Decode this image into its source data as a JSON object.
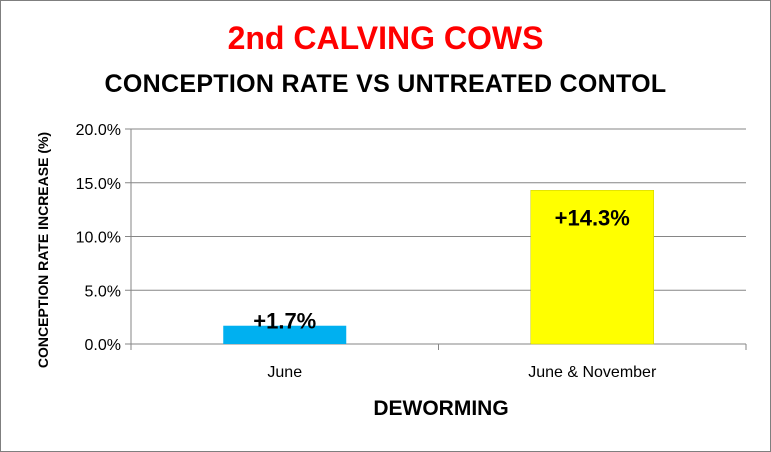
{
  "chart_data": {
    "type": "bar",
    "title": "2nd CALVING COWS",
    "subtitle": "CONCEPTION RATE VS UNTREATED CONTOL",
    "xlabel": "DEWORMING",
    "ylabel": "CONCEPTION RATE INCREASE (%)",
    "categories": [
      "June",
      "June & November"
    ],
    "values": [
      1.7,
      14.3
    ],
    "data_labels": [
      "+1.7%",
      "+14.3%"
    ],
    "ylim": [
      0,
      20
    ],
    "yticks": [
      0,
      5,
      10,
      15,
      20
    ],
    "ytick_labels": [
      "0.0%",
      "5.0%",
      "10.0%",
      "15.0%",
      "20.0%"
    ],
    "grid": true,
    "legend": false,
    "colors": {
      "title": "#ff0000",
      "bars": [
        "#00b0f0",
        "#ffff00"
      ],
      "bar_edge": "#c9c900",
      "axis": "#868686",
      "grid": "#868686"
    }
  }
}
